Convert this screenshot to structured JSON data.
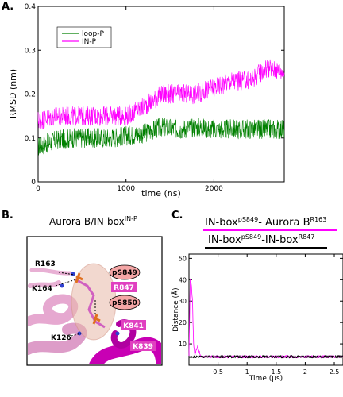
{
  "panel_labels": {
    "a": "A.",
    "b": "B.",
    "c": "C."
  },
  "chart_data": [
    {
      "type": "line",
      "panel": "A",
      "xlabel": "time (ns)",
      "ylabel": "RMSD (nm)",
      "xlim": [
        0,
        2800
      ],
      "ylim": [
        0,
        0.4
      ],
      "xticks": [
        0,
        1000,
        2000
      ],
      "yticks": [
        0,
        0.1,
        0.2,
        0.3,
        0.4
      ],
      "legend_position": "top-left",
      "series": [
        {
          "name": "loop-P",
          "color": "#008000",
          "x": [
            0,
            200,
            400,
            600,
            800,
            1000,
            1200,
            1400,
            1600,
            1800,
            2000,
            2200,
            2400,
            2600,
            2800
          ],
          "values": [
            0.08,
            0.095,
            0.1,
            0.1,
            0.1,
            0.105,
            0.11,
            0.125,
            0.12,
            0.125,
            0.12,
            0.12,
            0.12,
            0.12,
            0.12
          ]
        },
        {
          "name": "IN-P",
          "color": "#ff00ff",
          "x": [
            0,
            200,
            400,
            600,
            800,
            1000,
            1200,
            1400,
            1600,
            1800,
            2000,
            2200,
            2400,
            2600,
            2800
          ],
          "values": [
            0.14,
            0.15,
            0.15,
            0.15,
            0.15,
            0.15,
            0.17,
            0.2,
            0.2,
            0.2,
            0.215,
            0.23,
            0.23,
            0.26,
            0.25
          ]
        }
      ]
    },
    {
      "type": "line",
      "panel": "C",
      "xlabel": "Time (μs)",
      "ylabel": "Distance (Å)",
      "xlim": [
        0,
        2.65
      ],
      "ylim": [
        0,
        52
      ],
      "xticks": [
        0.5,
        1,
        1.5,
        2,
        2.5
      ],
      "xtick_labels": [
        "0.5",
        "1",
        "1.5",
        "2",
        "2.5"
      ],
      "yticks": [
        10,
        20,
        30,
        40,
        50
      ],
      "series": [
        {
          "name_parts": [
            "IN-box",
            "pS849",
            "- Aurora B",
            "R163"
          ],
          "color": "#ff00ff",
          "x": [
            0,
            0.02,
            0.04,
            0.06,
            0.08,
            0.1,
            0.15,
            0.2,
            0.3,
            0.5,
            1.0,
            1.5,
            2.0,
            2.5,
            2.65
          ],
          "values": [
            4,
            40,
            38,
            30,
            10,
            5,
            9,
            4,
            4,
            4,
            4,
            4,
            4,
            4,
            4
          ]
        },
        {
          "name_parts": [
            "IN-box",
            "pS849",
            "-IN-box",
            "R847"
          ],
          "color": "#000000",
          "x": [
            0,
            0.1,
            0.5,
            1.0,
            1.5,
            2.0,
            2.5,
            2.65
          ],
          "values": [
            4,
            4,
            4,
            4,
            4,
            4,
            4,
            4
          ]
        }
      ]
    }
  ],
  "panel_b": {
    "title_main": "Aurora B/IN-box",
    "title_sup": "IN-P",
    "labels": [
      "R163",
      "K164",
      "K126",
      "pS849",
      "pS850",
      "R847",
      "K841",
      "K839"
    ]
  }
}
